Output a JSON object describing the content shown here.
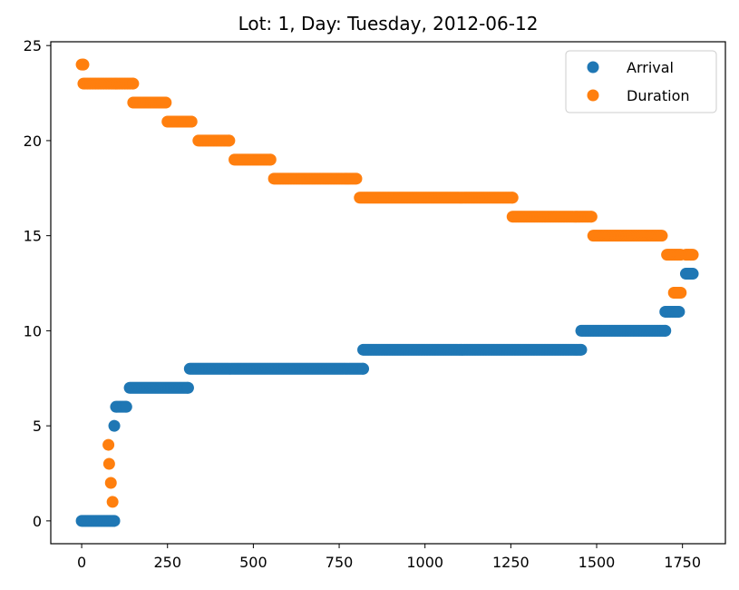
{
  "chart_data": {
    "type": "scatter",
    "title": "Lot: 1, Day: Tuesday, 2012-06-12",
    "xlabel": "",
    "ylabel": "",
    "xlim": [
      -90,
      1875
    ],
    "ylim": [
      -1.2,
      25.2
    ],
    "xticks": [
      0,
      250,
      500,
      750,
      1000,
      1250,
      1500,
      1750
    ],
    "yticks": [
      0,
      5,
      10,
      15,
      20,
      25
    ],
    "grid": false,
    "legend_position": "top-right",
    "series": [
      {
        "name": "Arrival",
        "color": "#1f77b4",
        "segments": [
          [
            0,
            95,
            0
          ],
          [
            95,
            95,
            5
          ],
          [
            100,
            130,
            6
          ],
          [
            140,
            310,
            7
          ],
          [
            315,
            820,
            8
          ],
          [
            820,
            1455,
            9
          ],
          [
            1455,
            1700,
            10
          ],
          [
            1700,
            1740,
            11
          ],
          [
            1760,
            1780,
            13
          ]
        ]
      },
      {
        "name": "Duration",
        "color": "#ff7f0e",
        "segments": [
          [
            0,
            5,
            24
          ],
          [
            5,
            150,
            23
          ],
          [
            150,
            245,
            22
          ],
          [
            250,
            320,
            21
          ],
          [
            340,
            430,
            20
          ],
          [
            445,
            550,
            19
          ],
          [
            560,
            800,
            18
          ],
          [
            810,
            1255,
            17
          ],
          [
            1255,
            1485,
            16
          ],
          [
            1490,
            1690,
            15
          ],
          [
            1705,
            1745,
            14
          ],
          [
            1760,
            1780,
            14
          ],
          [
            1725,
            1745,
            12
          ],
          [
            90,
            90,
            1
          ],
          [
            85,
            85,
            2
          ],
          [
            80,
            80,
            3
          ],
          [
            78,
            78,
            4
          ]
        ]
      }
    ]
  }
}
